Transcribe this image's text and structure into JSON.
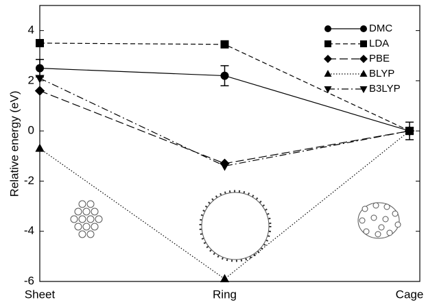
{
  "chart_data": {
    "type": "line",
    "y_label": "Relative energy (eV)",
    "categories": [
      "Sheet",
      "Ring",
      "Cage"
    ],
    "ylim": [
      -6,
      5
    ],
    "yticks": [
      -6,
      -4,
      -2,
      0,
      2,
      4
    ],
    "legend": "upper right",
    "series": [
      {
        "name": "DMC",
        "color": "#000000",
        "linestyle": "solid",
        "marker": "circle",
        "values": [
          2.5,
          2.2,
          0
        ],
        "errors": [
          0.35,
          0.4,
          0.35
        ]
      },
      {
        "name": "LDA",
        "color": "#000000",
        "linestyle": "dashed",
        "marker": "square",
        "values": [
          3.5,
          3.45,
          0
        ]
      },
      {
        "name": "PBE",
        "color": "#000000",
        "linestyle": "longdash",
        "marker": "diamond",
        "values": [
          1.6,
          -1.3,
          0
        ]
      },
      {
        "name": "BLYP",
        "color": "#000000",
        "linestyle": "dotted",
        "marker": "triangle",
        "values": [
          -0.7,
          -5.9,
          0
        ]
      },
      {
        "name": "B3LYP",
        "color": "#000000",
        "linestyle": "dashdot",
        "marker": "triangle-down",
        "values": [
          2.1,
          -1.4,
          0
        ]
      }
    ]
  }
}
